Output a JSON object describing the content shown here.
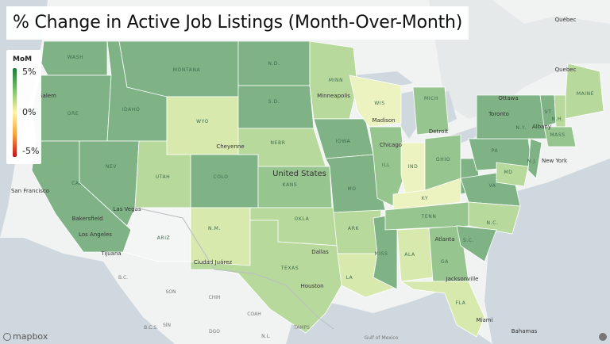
{
  "title": "% Change in Active Job Listings (Month-Over-Month)",
  "legend": {
    "title": "MoM",
    "max": "5%",
    "mid": "0%",
    "min": "-5%"
  },
  "colors": {
    "darkest": "#6da77d",
    "dark": "#7fb386",
    "mid": "#97c58f",
    "light": "#b8d99c",
    "pale": "#d7e9ad",
    "yellow": "#ecf3c1",
    "water": "#cdd6dc",
    "land": "#f1f3f3",
    "undata": "#f4f5f5"
  },
  "states": [
    {
      "abbr": "WASH",
      "shade": "dark"
    },
    {
      "abbr": "ORE",
      "shade": "dark"
    },
    {
      "abbr": "CALIF",
      "shade": "dark"
    },
    {
      "abbr": "IDAHO",
      "shade": "dark"
    },
    {
      "abbr": "NEV",
      "shade": "dark"
    },
    {
      "abbr": "MONTANA",
      "shade": "dark"
    },
    {
      "abbr": "WYO",
      "shade": "pale"
    },
    {
      "abbr": "UTAH",
      "shade": "light"
    },
    {
      "abbr": "ARIZ",
      "shade": "none"
    },
    {
      "abbr": "COLO",
      "shade": "dark"
    },
    {
      "abbr": "N.M.",
      "shade": "pale"
    },
    {
      "abbr": "N.D.",
      "shade": "dark"
    },
    {
      "abbr": "S.D.",
      "shade": "dark"
    },
    {
      "abbr": "NEBR",
      "shade": "light"
    },
    {
      "abbr": "KANS",
      "shade": "mid"
    },
    {
      "abbr": "OKLA",
      "shade": "light"
    },
    {
      "abbr": "TEXAS",
      "shade": "light"
    },
    {
      "abbr": "MINN",
      "shade": "light"
    },
    {
      "abbr": "IOWA",
      "shade": "dark"
    },
    {
      "abbr": "MO",
      "shade": "dark"
    },
    {
      "abbr": "ARK",
      "shade": "light"
    },
    {
      "abbr": "LA",
      "shade": "pale"
    },
    {
      "abbr": "WIS",
      "shade": "yellow"
    },
    {
      "abbr": "ILL",
      "shade": "mid"
    },
    {
      "abbr": "MISS",
      "shade": "dark"
    },
    {
      "abbr": "MICH",
      "shade": "mid"
    },
    {
      "abbr": "IND",
      "shade": "yellow"
    },
    {
      "abbr": "KY",
      "shade": "yellow"
    },
    {
      "abbr": "TENN",
      "shade": "mid"
    },
    {
      "abbr": "ALA",
      "shade": "pale"
    },
    {
      "abbr": "GA",
      "shade": "mid"
    },
    {
      "abbr": "FLA",
      "shade": "pale"
    },
    {
      "abbr": "OHIO",
      "shade": "mid"
    },
    {
      "abbr": "W.VA",
      "shade": "dark"
    },
    {
      "abbr": "VA",
      "shade": "dark"
    },
    {
      "abbr": "N.C.",
      "shade": "light"
    },
    {
      "abbr": "S.C.",
      "shade": "dark"
    },
    {
      "abbr": "PA",
      "shade": "dark"
    },
    {
      "abbr": "N.Y.",
      "shade": "dark"
    },
    {
      "abbr": "MAINE",
      "shade": "light"
    },
    {
      "abbr": "VT",
      "shade": "dark"
    },
    {
      "abbr": "N.H.",
      "shade": "light"
    },
    {
      "abbr": "MASS",
      "shade": "mid"
    },
    {
      "abbr": "N.J.",
      "shade": "dark"
    },
    {
      "abbr": "MD",
      "shade": "light"
    }
  ],
  "labels": {
    "country": "United States",
    "cities": [
      "Salem",
      "San Francisco",
      "Bakersfield",
      "Los Angeles",
      "Tijuana",
      "Las Vegas",
      "Cheyenne",
      "Minneapolis",
      "Madison",
      "Chicago",
      "Detroit",
      "Toronto",
      "Ottawa",
      "Québec",
      "Albany",
      "New York",
      "Atlanta",
      "Dallas",
      "Houston",
      "Ciudad Juárez",
      "Jacksonville",
      "Miami",
      "Bahamas",
      "Quebec"
    ],
    "regions": [
      "SON",
      "CHIH",
      "B.C.",
      "B.C.S.",
      "COAH",
      "N.L.",
      "TAMPS",
      "SIN",
      "DGO",
      "Gulf of Mexico"
    ]
  },
  "branding": {
    "logo": "mapbox"
  }
}
